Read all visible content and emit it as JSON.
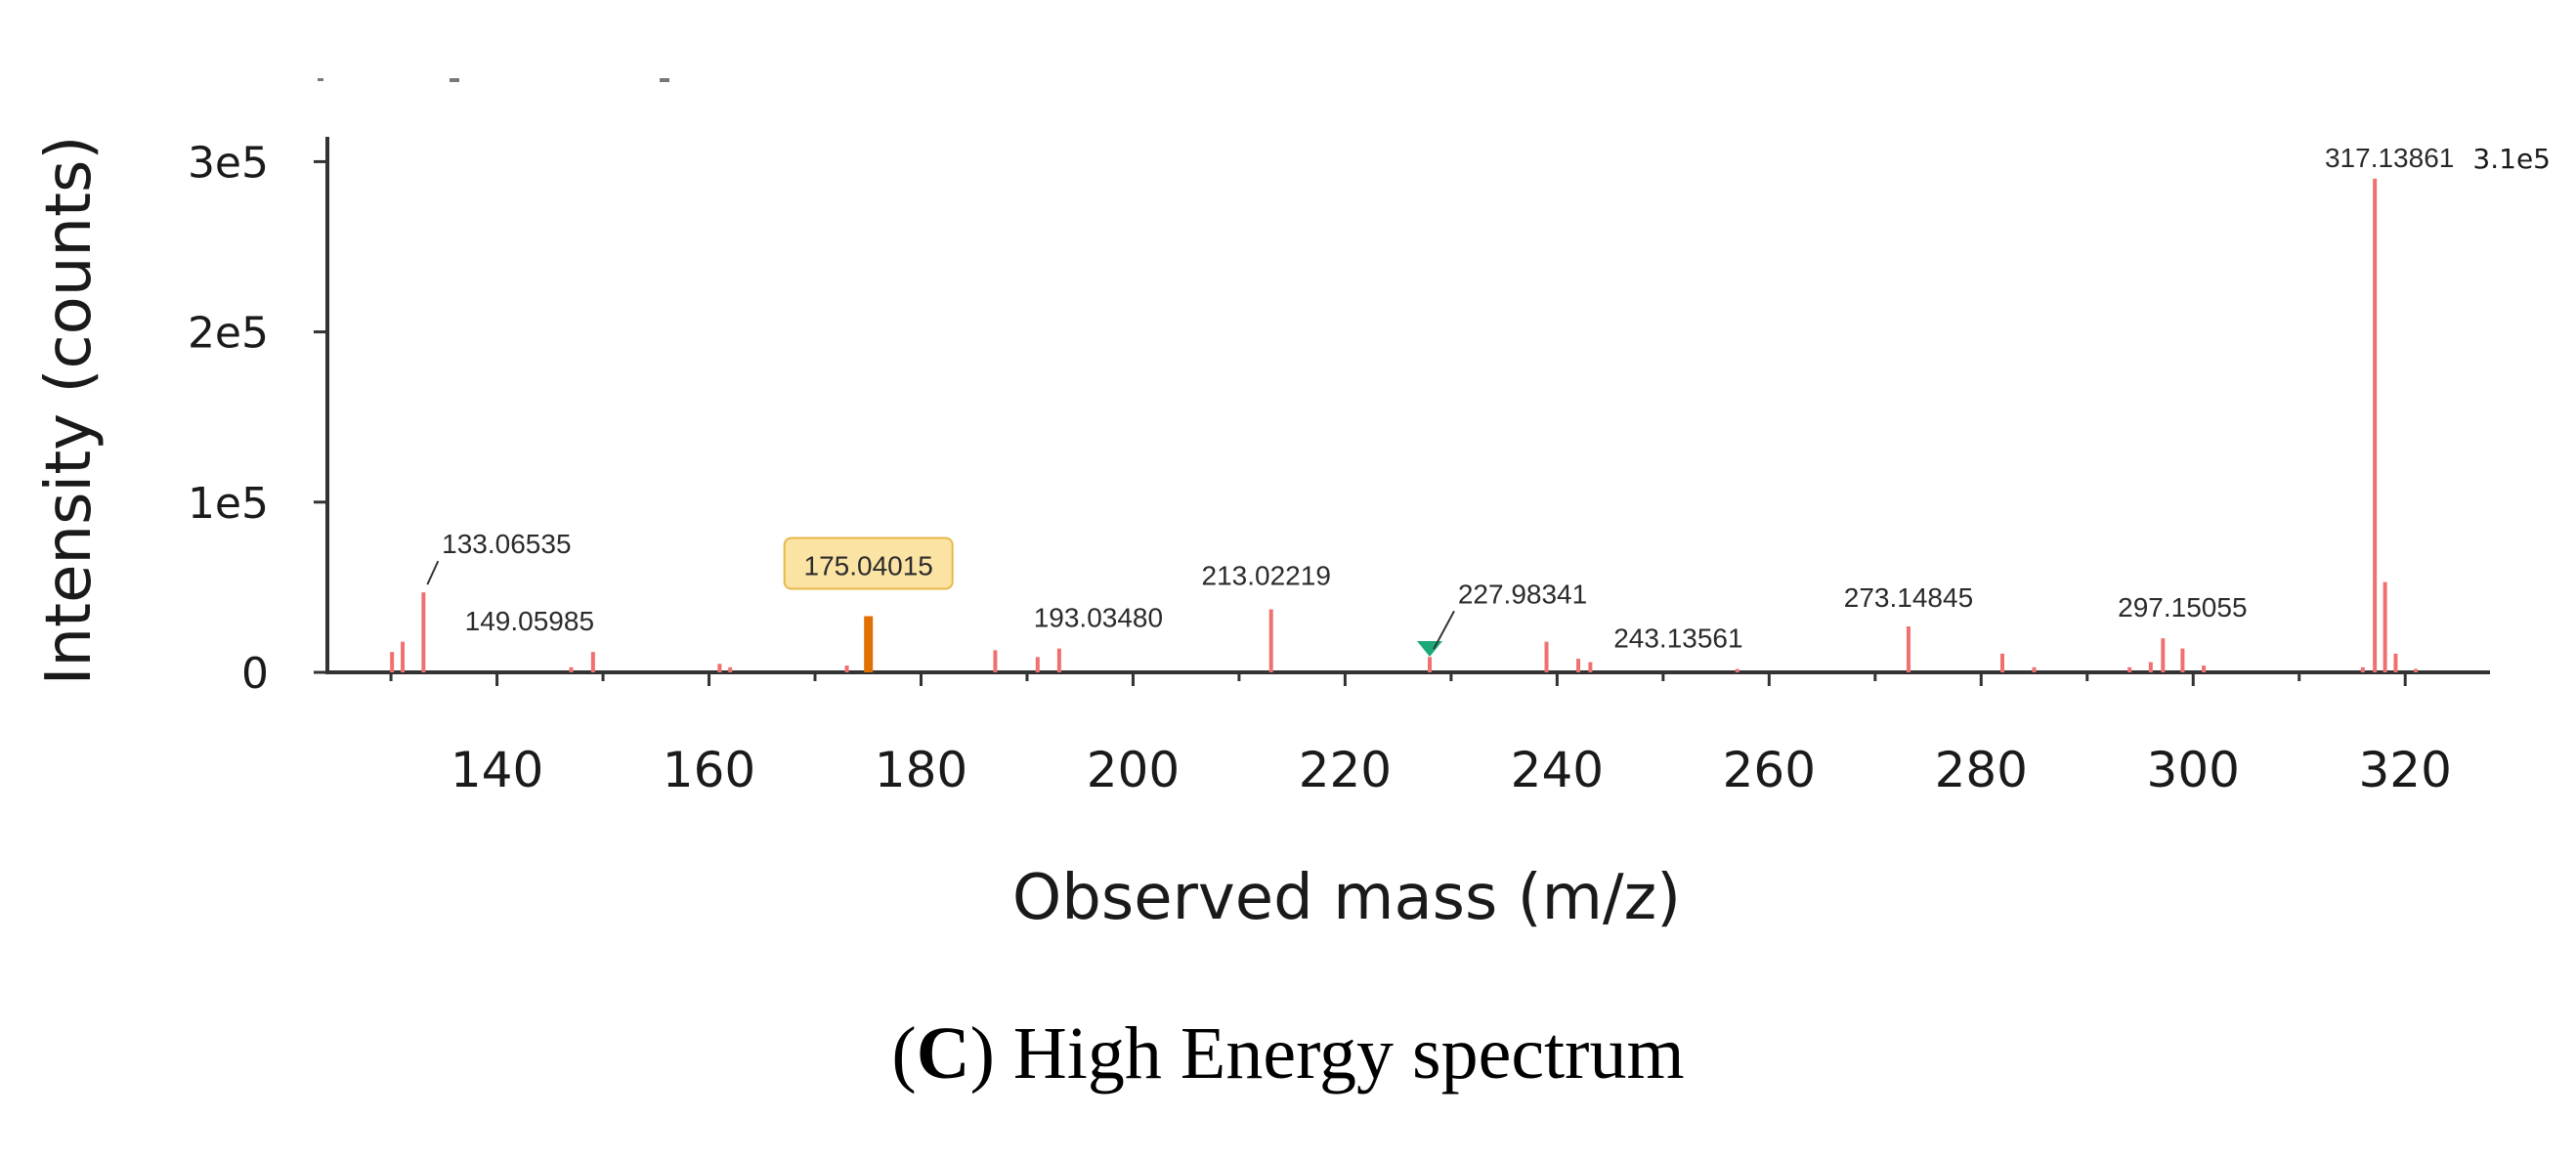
{
  "caption": {
    "open": "(",
    "letter": "C",
    "rest": ") High Energy spectrum"
  },
  "colors": {
    "peak": "#f07070",
    "highlight_peak": "#e07000",
    "highlight_box": "#fbe3a3",
    "highlight_border": "#e8b84a",
    "marker": "#1aaa78",
    "axis": "#333333"
  },
  "chart_data": {
    "type": "bar",
    "title": "",
    "xlabel": "Observed mass (m/z)",
    "ylabel": "Intensity (counts)",
    "xlim": [
      124,
      328
    ],
    "ylim": [
      0,
      310000
    ],
    "x_ticks": [
      140,
      160,
      180,
      200,
      220,
      240,
      260,
      280,
      300,
      320
    ],
    "y_ticks": [
      {
        "value": 0,
        "label": "0"
      },
      {
        "value": 100000,
        "label": "1e5"
      },
      {
        "value": 200000,
        "label": "2e5"
      },
      {
        "value": 300000,
        "label": "3e5"
      }
    ],
    "max_label": "3.1e5",
    "peaks": [
      {
        "mz": 130.1,
        "intensity": 12000
      },
      {
        "mz": 131.1,
        "intensity": 18000
      },
      {
        "mz": 133.06535,
        "intensity": 47000,
        "label": "133.06535"
      },
      {
        "mz": 147.0,
        "intensity": 3000
      },
      {
        "mz": 149.05985,
        "intensity": 12000,
        "label": "149.05985"
      },
      {
        "mz": 161.0,
        "intensity": 5000
      },
      {
        "mz": 162.0,
        "intensity": 3000
      },
      {
        "mz": 173.0,
        "intensity": 4000
      },
      {
        "mz": 175.04015,
        "intensity": 33000,
        "label": "175.04015",
        "highlight": true
      },
      {
        "mz": 187.0,
        "intensity": 13000
      },
      {
        "mz": 191.0,
        "intensity": 9000
      },
      {
        "mz": 193.0348,
        "intensity": 14000,
        "label": "193.03480"
      },
      {
        "mz": 213.02219,
        "intensity": 37000,
        "label": "213.02219"
      },
      {
        "mz": 227.98341,
        "intensity": 9000,
        "label": "227.98341",
        "marker": true
      },
      {
        "mz": 239.0,
        "intensity": 18000
      },
      {
        "mz": 242.0,
        "intensity": 8000
      },
      {
        "mz": 243.13561,
        "intensity": 6000,
        "label": "243.13561"
      },
      {
        "mz": 257.0,
        "intensity": 2000
      },
      {
        "mz": 273.14845,
        "intensity": 27000,
        "label": "273.14845"
      },
      {
        "mz": 282.0,
        "intensity": 11000
      },
      {
        "mz": 285.0,
        "intensity": 3000
      },
      {
        "mz": 294.0,
        "intensity": 3000
      },
      {
        "mz": 296.0,
        "intensity": 6000
      },
      {
        "mz": 297.15055,
        "intensity": 20000,
        "label": "297.15055"
      },
      {
        "mz": 299.0,
        "intensity": 14000
      },
      {
        "mz": 301.0,
        "intensity": 4000
      },
      {
        "mz": 316.0,
        "intensity": 3000
      },
      {
        "mz": 317.13861,
        "intensity": 290000,
        "label": "317.13861"
      },
      {
        "mz": 318.1,
        "intensity": 53000
      },
      {
        "mz": 319.1,
        "intensity": 11000
      },
      {
        "mz": 321.0,
        "intensity": 2000
      }
    ]
  }
}
